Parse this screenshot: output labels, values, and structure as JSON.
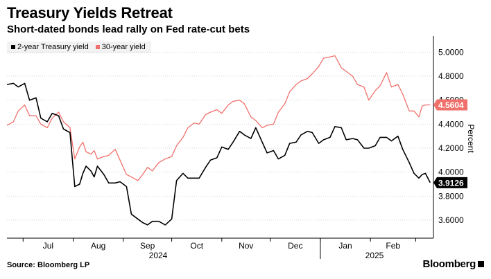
{
  "title": "Treasury Yields Retreat",
  "subtitle": "Short-dated bonds lead rally on Fed rate-cut bets",
  "source": "Source: Bloomberg LP",
  "brand": "Bloomberg",
  "colors": {
    "two_year": "#000000",
    "thirty_year": "#f0706b",
    "grid": "#d9d9d9"
  },
  "chart_data": {
    "type": "line",
    "ylabel": "Percent",
    "ylim": [
      3.45,
      5.1
    ],
    "yticks": [
      {
        "value": 3.6,
        "label": "3.6000"
      },
      {
        "value": 3.8,
        "label": "3.8000"
      },
      {
        "value": 4.0,
        "label": "4.0000"
      },
      {
        "value": 4.2,
        "label": "4.2000"
      },
      {
        "value": 4.4,
        "label": "4.4000"
      },
      {
        "value": 4.6,
        "label": "4.6000"
      },
      {
        "value": 4.8,
        "label": "4.8000"
      },
      {
        "value": 5.0,
        "label": "5.0000"
      }
    ],
    "xticks": [
      "Jul",
      "Aug",
      "Sep",
      "Oct",
      "Nov",
      "Dec",
      "Jan",
      "Feb"
    ],
    "year_labels": [
      "2024",
      "2025"
    ],
    "grid": "horizontal",
    "legend_position": "top-left",
    "last_value_labels": [
      "4.5604",
      "3.9126"
    ],
    "series": [
      {
        "name": "2-year Treasury yield",
        "color": "#000000",
        "values": [
          [
            "2024-06-21",
            4.73
          ],
          [
            "2024-06-25",
            4.74
          ],
          [
            "2024-06-28",
            4.71
          ],
          [
            "2024-07-02",
            4.74
          ],
          [
            "2024-07-05",
            4.6
          ],
          [
            "2024-07-09",
            4.62
          ],
          [
            "2024-07-12",
            4.45
          ],
          [
            "2024-07-16",
            4.42
          ],
          [
            "2024-07-19",
            4.49
          ],
          [
            "2024-07-23",
            4.47
          ],
          [
            "2024-07-26",
            4.36
          ],
          [
            "2024-07-30",
            4.33
          ],
          [
            "2024-08-02",
            3.88
          ],
          [
            "2024-08-05",
            3.9
          ],
          [
            "2024-08-07",
            3.99
          ],
          [
            "2024-08-09",
            4.05
          ],
          [
            "2024-08-12",
            4.01
          ],
          [
            "2024-08-14",
            3.96
          ],
          [
            "2024-08-16",
            4.05
          ],
          [
            "2024-08-20",
            3.98
          ],
          [
            "2024-08-23",
            3.91
          ],
          [
            "2024-08-27",
            3.91
          ],
          [
            "2024-08-30",
            3.92
          ],
          [
            "2024-09-03",
            3.88
          ],
          [
            "2024-09-06",
            3.65
          ],
          [
            "2024-09-10",
            3.61
          ],
          [
            "2024-09-13",
            3.58
          ],
          [
            "2024-09-16",
            3.56
          ],
          [
            "2024-09-19",
            3.59
          ],
          [
            "2024-09-23",
            3.59
          ],
          [
            "2024-09-27",
            3.56
          ],
          [
            "2024-10-01",
            3.61
          ],
          [
            "2024-10-04",
            3.93
          ],
          [
            "2024-10-08",
            3.99
          ],
          [
            "2024-10-11",
            3.95
          ],
          [
            "2024-10-15",
            3.95
          ],
          [
            "2024-10-18",
            3.95
          ],
          [
            "2024-10-22",
            4.04
          ],
          [
            "2024-10-25",
            4.1
          ],
          [
            "2024-10-29",
            4.12
          ],
          [
            "2024-11-01",
            4.21
          ],
          [
            "2024-11-05",
            4.19
          ],
          [
            "2024-11-08",
            4.25
          ],
          [
            "2024-11-12",
            4.34
          ],
          [
            "2024-11-15",
            4.31
          ],
          [
            "2024-11-19",
            4.28
          ],
          [
            "2024-11-22",
            4.37
          ],
          [
            "2024-11-26",
            4.25
          ],
          [
            "2024-11-29",
            4.16
          ],
          [
            "2024-12-03",
            4.18
          ],
          [
            "2024-12-06",
            4.11
          ],
          [
            "2024-12-10",
            4.14
          ],
          [
            "2024-12-13",
            4.24
          ],
          [
            "2024-12-17",
            4.25
          ],
          [
            "2024-12-20",
            4.31
          ],
          [
            "2024-12-24",
            4.34
          ],
          [
            "2024-12-27",
            4.33
          ],
          [
            "2024-12-31",
            4.24
          ],
          [
            "2025-01-03",
            4.27
          ],
          [
            "2025-01-07",
            4.29
          ],
          [
            "2025-01-10",
            4.38
          ],
          [
            "2025-01-14",
            4.37
          ],
          [
            "2025-01-17",
            4.27
          ],
          [
            "2025-01-21",
            4.28
          ],
          [
            "2025-01-24",
            4.27
          ],
          [
            "2025-01-28",
            4.2
          ],
          [
            "2025-01-31",
            4.2
          ],
          [
            "2025-02-04",
            4.22
          ],
          [
            "2025-02-07",
            4.29
          ],
          [
            "2025-02-11",
            4.29
          ],
          [
            "2025-02-14",
            4.26
          ],
          [
            "2025-02-18",
            4.3
          ],
          [
            "2025-02-21",
            4.19
          ],
          [
            "2025-02-25",
            4.08
          ],
          [
            "2025-02-28",
            3.99
          ],
          [
            "2025-03-03",
            3.95
          ],
          [
            "2025-03-05",
            3.98
          ],
          [
            "2025-03-07",
            3.99
          ],
          [
            "2025-03-10",
            3.9126
          ]
        ]
      },
      {
        "name": "30-year yield",
        "color": "#f0706b",
        "values": [
          [
            "2024-06-21",
            4.39
          ],
          [
            "2024-06-25",
            4.42
          ],
          [
            "2024-06-28",
            4.51
          ],
          [
            "2024-07-02",
            4.56
          ],
          [
            "2024-07-05",
            4.47
          ],
          [
            "2024-07-09",
            4.47
          ],
          [
            "2024-07-12",
            4.4
          ],
          [
            "2024-07-16",
            4.37
          ],
          [
            "2024-07-19",
            4.45
          ],
          [
            "2024-07-23",
            4.5
          ],
          [
            "2024-07-26",
            4.42
          ],
          [
            "2024-07-30",
            4.37
          ],
          [
            "2024-08-02",
            4.11
          ],
          [
            "2024-08-05",
            4.21
          ],
          [
            "2024-08-07",
            4.25
          ],
          [
            "2024-08-09",
            4.17
          ],
          [
            "2024-08-12",
            4.15
          ],
          [
            "2024-08-14",
            4.18
          ],
          [
            "2024-08-16",
            4.11
          ],
          [
            "2024-08-20",
            4.13
          ],
          [
            "2024-08-23",
            4.14
          ],
          [
            "2024-08-27",
            4.19
          ],
          [
            "2024-08-30",
            4.1
          ],
          [
            "2024-09-03",
            3.98
          ],
          [
            "2024-09-06",
            3.96
          ],
          [
            "2024-09-10",
            3.93
          ],
          [
            "2024-09-13",
            3.98
          ],
          [
            "2024-09-16",
            4.04
          ],
          [
            "2024-09-19",
            4.01
          ],
          [
            "2024-09-23",
            4.08
          ],
          [
            "2024-09-27",
            4.11
          ],
          [
            "2024-10-01",
            4.13
          ],
          [
            "2024-10-04",
            4.22
          ],
          [
            "2024-10-08",
            4.29
          ],
          [
            "2024-10-11",
            4.37
          ],
          [
            "2024-10-15",
            4.41
          ],
          [
            "2024-10-18",
            4.4
          ],
          [
            "2024-10-22",
            4.48
          ],
          [
            "2024-10-25",
            4.5
          ],
          [
            "2024-10-29",
            4.52
          ],
          [
            "2024-11-01",
            4.49
          ],
          [
            "2024-11-05",
            4.56
          ],
          [
            "2024-11-08",
            4.59
          ],
          [
            "2024-11-12",
            4.6
          ],
          [
            "2024-11-15",
            4.57
          ],
          [
            "2024-11-19",
            4.46
          ],
          [
            "2024-11-22",
            4.43
          ],
          [
            "2024-11-26",
            4.37
          ],
          [
            "2024-11-29",
            4.39
          ],
          [
            "2024-12-03",
            4.4
          ],
          [
            "2024-12-06",
            4.5
          ],
          [
            "2024-12-10",
            4.57
          ],
          [
            "2024-12-13",
            4.67
          ],
          [
            "2024-12-17",
            4.73
          ],
          [
            "2024-12-20",
            4.76
          ],
          [
            "2024-12-24",
            4.78
          ],
          [
            "2024-12-27",
            4.82
          ],
          [
            "2024-12-31",
            4.88
          ],
          [
            "2025-01-03",
            4.95
          ],
          [
            "2025-01-07",
            4.96
          ],
          [
            "2025-01-10",
            4.97
          ],
          [
            "2025-01-14",
            4.87
          ],
          [
            "2025-01-17",
            4.84
          ],
          [
            "2025-01-21",
            4.8
          ],
          [
            "2025-01-24",
            4.73
          ],
          [
            "2025-01-28",
            4.71
          ],
          [
            "2025-01-31",
            4.6
          ],
          [
            "2025-02-04",
            4.68
          ],
          [
            "2025-02-07",
            4.72
          ],
          [
            "2025-02-11",
            4.83
          ],
          [
            "2025-02-14",
            4.71
          ],
          [
            "2025-02-18",
            4.73
          ],
          [
            "2025-02-21",
            4.65
          ],
          [
            "2025-02-25",
            4.51
          ],
          [
            "2025-02-28",
            4.51
          ],
          [
            "2025-03-03",
            4.46
          ],
          [
            "2025-03-05",
            4.55
          ],
          [
            "2025-03-07",
            4.56
          ],
          [
            "2025-03-10",
            4.5604
          ]
        ]
      }
    ]
  }
}
